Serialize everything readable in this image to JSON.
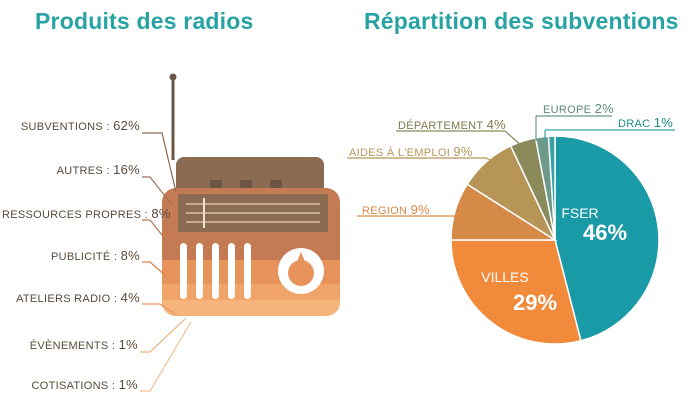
{
  "titles": {
    "left": "Produits des radios",
    "right": "Répartition des subventions"
  },
  "colors": {
    "title": "#27a3a3",
    "radio_body": "#c47b54",
    "radio_top": "#8b6b52",
    "fser": "#1a9aa6",
    "villes": "#f28a3b",
    "region": "#d68a48",
    "aides": "#b69557",
    "departement": "#8b8a5a",
    "europe": "#6b9a8a",
    "drac": "#38a2a2"
  },
  "chart_data": [
    {
      "type": "bar",
      "title": "Produits des radios",
      "categories": [
        "subventions",
        "autres",
        "ressources propres",
        "publicité",
        "ateliers radio",
        "évènements",
        "cotisations"
      ],
      "values": [
        62,
        16,
        8,
        8,
        4,
        1,
        1
      ],
      "unit": "%",
      "labels": [
        {
          "name": "subventions :",
          "value": "62%"
        },
        {
          "name": "autres :",
          "value": "16%"
        },
        {
          "name": "ressources propres :",
          "value": "8%"
        },
        {
          "name": "publicité :",
          "value": "8%"
        },
        {
          "name": "ateliers radio :",
          "value": "4%"
        },
        {
          "name": "évènements :",
          "value": "1%"
        },
        {
          "name": "cotisations :",
          "value": "1%"
        }
      ]
    },
    {
      "type": "pie",
      "title": "Répartition des subventions",
      "categories": [
        "FSER",
        "Villes",
        "Region",
        "Aides à l'emploi",
        "Département",
        "Europe",
        "DRAC"
      ],
      "values": [
        46,
        29,
        9,
        9,
        4,
        2,
        1
      ],
      "labels": [
        {
          "name": "FSER",
          "value": "46%"
        },
        {
          "name": "VILLES",
          "value": "29%"
        },
        {
          "name": "REGION",
          "value": "9%"
        },
        {
          "name": "AIDES À L'EMPLOI",
          "value": "9%"
        },
        {
          "name": "DÉPARTEMENT",
          "value": "4%"
        },
        {
          "name": "EUROPE",
          "value": "2%"
        },
        {
          "name": "DRAC",
          "value": "1%"
        }
      ]
    }
  ]
}
